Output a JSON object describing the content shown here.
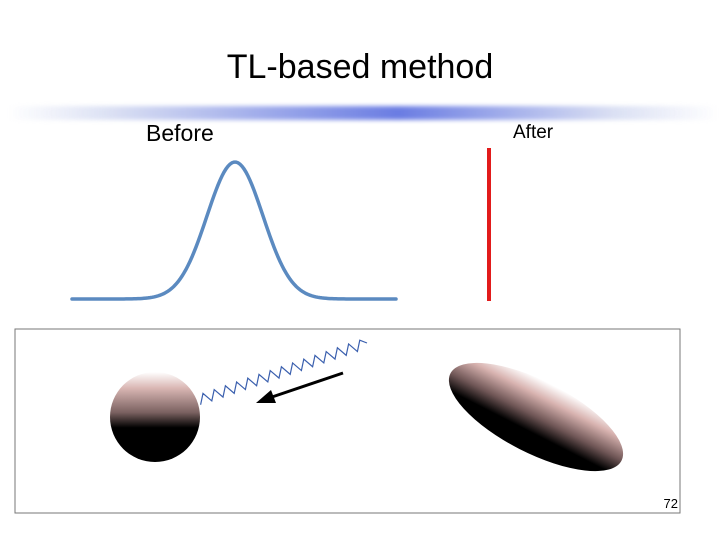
{
  "slide": {
    "title": "TL-based method",
    "before_label": "Before",
    "after_label": "After",
    "slide_number": "72"
  },
  "colors": {
    "gaussian_curve": "#5b8ac0",
    "after_line": "#e21b1b",
    "wave": "#3a5fae",
    "arrow": "#000000",
    "accent_rule": "#3a56d6"
  }
}
